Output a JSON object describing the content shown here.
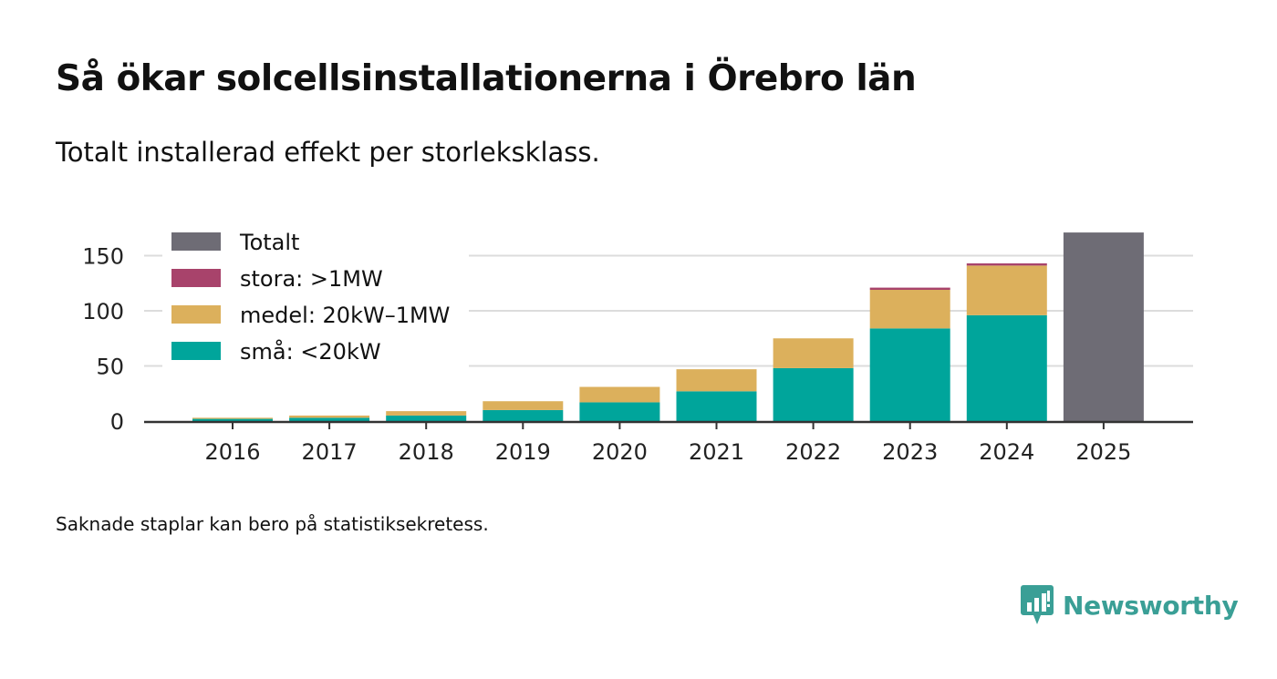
{
  "title": "Så ökar solcellsinstallationerna i Örebro län",
  "subtitle": "Totalt installerad effekt per storleksklass.",
  "footnote": "Saknade staplar kan bero på statistiksekretess.",
  "brand": {
    "name": "Newsworthy",
    "color": "#3a9f96"
  },
  "chart_data": {
    "type": "bar",
    "stacked": true,
    "categories": [
      "2016",
      "2017",
      "2018",
      "2019",
      "2020",
      "2021",
      "2022",
      "2023",
      "2024",
      "2025"
    ],
    "series": [
      {
        "name": "små: <20kW",
        "color": "#00a59b",
        "values": [
          2,
          3,
          5,
          10,
          17,
          27,
          48,
          84,
          96,
          null
        ]
      },
      {
        "name": "medel: 20kW–1MW",
        "color": "#dcb05c",
        "values": [
          1,
          2,
          4,
          8,
          14,
          20,
          27,
          35,
          45,
          null
        ]
      },
      {
        "name": "stora: >1MW",
        "color": "#a8436b",
        "values": [
          0,
          0,
          0,
          0,
          0,
          0,
          0,
          2,
          2,
          null
        ]
      },
      {
        "name": "Totalt",
        "color": "#6e6c75",
        "values": [
          null,
          null,
          null,
          null,
          null,
          null,
          null,
          null,
          null,
          171
        ]
      }
    ],
    "legend": [
      "Totalt",
      "stora: >1MW",
      "medel: 20kW–1MW",
      "små: <20kW"
    ],
    "yticks": [
      0,
      50,
      100,
      150
    ],
    "ylim": [
      0,
      175
    ],
    "title": "",
    "xlabel": "",
    "ylabel": "",
    "grid": true,
    "legend_position": "top-left"
  }
}
